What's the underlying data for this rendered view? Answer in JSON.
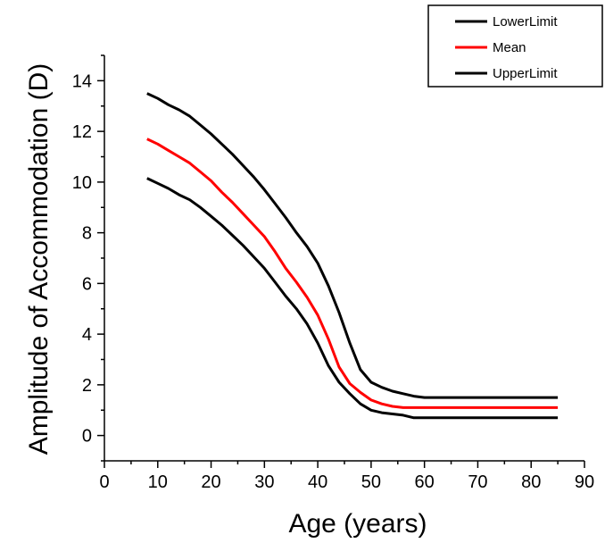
{
  "chart_data": {
    "type": "line",
    "xlabel": "Age (years)",
    "ylabel": "Amplitude of Accommodation (D)",
    "xlim": [
      0,
      90
    ],
    "ylim": [
      -1,
      15
    ],
    "x_ticks": [
      "0",
      "10",
      "20",
      "30",
      "40",
      "50",
      "60",
      "70",
      "80",
      "90"
    ],
    "y_ticks": [
      "0",
      "2",
      "4",
      "6",
      "8",
      "10",
      "12",
      "14"
    ],
    "grid": false,
    "legend_position": "top-right",
    "series": [
      {
        "name": "LowerLimit",
        "color": "#000000",
        "x": [
          8,
          10,
          12,
          14,
          16,
          18,
          20,
          22,
          24,
          26,
          28,
          30,
          32,
          34,
          36,
          38,
          40,
          42,
          44,
          46,
          48,
          50,
          52,
          54,
          56,
          58,
          60,
          70,
          85
        ],
        "y": [
          10.15,
          9.95,
          9.75,
          9.5,
          9.3,
          9.0,
          8.65,
          8.3,
          7.9,
          7.5,
          7.05,
          6.6,
          6.05,
          5.5,
          5.0,
          4.4,
          3.65,
          2.75,
          2.1,
          1.65,
          1.25,
          1.0,
          0.9,
          0.85,
          0.8,
          0.7,
          0.7,
          0.7,
          0.7
        ]
      },
      {
        "name": "Mean",
        "color": "#ff0000",
        "x": [
          8,
          10,
          12,
          14,
          16,
          18,
          20,
          22,
          24,
          26,
          28,
          30,
          32,
          34,
          36,
          38,
          40,
          42,
          44,
          46,
          48,
          50,
          52,
          54,
          56,
          58,
          60,
          70,
          85
        ],
        "y": [
          11.7,
          11.5,
          11.25,
          11.0,
          10.75,
          10.4,
          10.05,
          9.6,
          9.2,
          8.75,
          8.3,
          7.85,
          7.25,
          6.6,
          6.05,
          5.45,
          4.75,
          3.8,
          2.7,
          2.05,
          1.7,
          1.4,
          1.25,
          1.15,
          1.1,
          1.1,
          1.1,
          1.1,
          1.1
        ]
      },
      {
        "name": "UpperLimit",
        "color": "#000000",
        "x": [
          8,
          10,
          12,
          14,
          16,
          18,
          20,
          22,
          24,
          26,
          28,
          30,
          32,
          34,
          36,
          38,
          40,
          42,
          44,
          46,
          48,
          50,
          52,
          54,
          56,
          58,
          60,
          70,
          85
        ],
        "y": [
          13.5,
          13.3,
          13.05,
          12.85,
          12.6,
          12.25,
          11.9,
          11.5,
          11.1,
          10.65,
          10.2,
          9.7,
          9.15,
          8.6,
          8.0,
          7.45,
          6.8,
          5.9,
          4.85,
          3.65,
          2.6,
          2.1,
          1.9,
          1.75,
          1.65,
          1.55,
          1.5,
          1.5,
          1.5
        ]
      }
    ]
  }
}
